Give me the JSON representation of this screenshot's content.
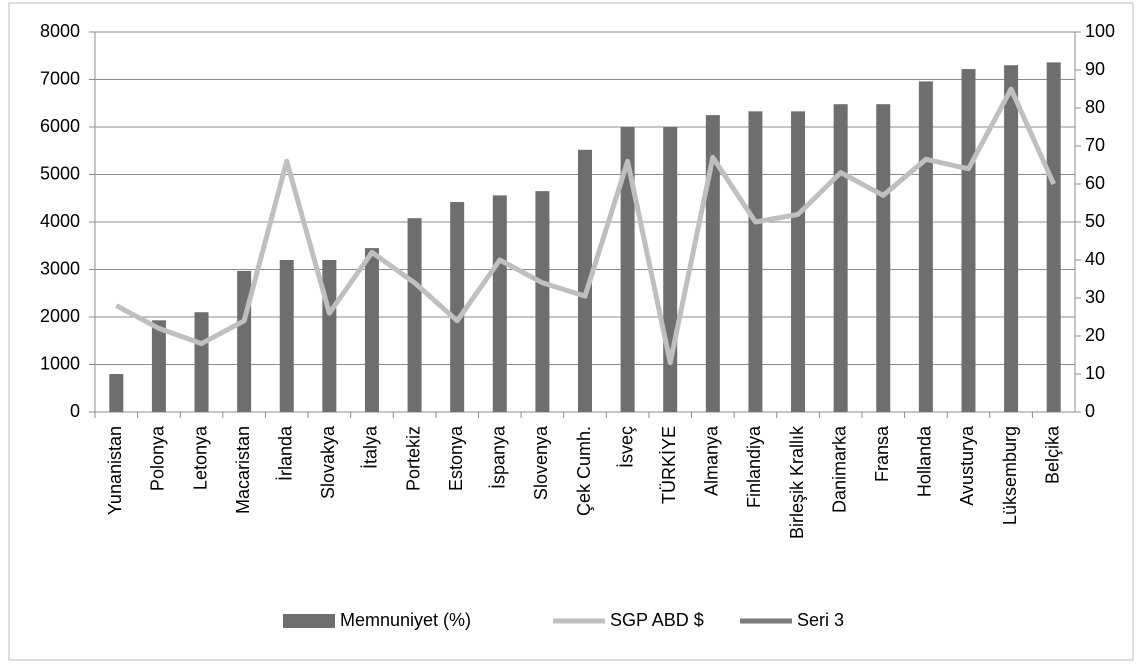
{
  "chart_data": {
    "type": "bar",
    "categories": [
      "Yunanistan",
      "Polonya",
      "Letonya",
      "Macaristan",
      "İrlanda",
      "Slovakya",
      "İtalya",
      "Portekiz",
      "Estonya",
      "İspanya",
      "Slovenya",
      "Çek Cumh.",
      "İsveç",
      "TÜRKİYE",
      "Almanya",
      "Finlandiya",
      "Birleşik Krallık",
      "Danimarka",
      "Fransa",
      "Hollanda",
      "Avusturya",
      "Lüksemburg",
      "Belçika"
    ],
    "series": [
      {
        "name": "Memnuniyet (%)",
        "type": "bar",
        "color": "#6e6e6e",
        "values": [
          800,
          1930,
          2100,
          2970,
          3200,
          3200,
          3450,
          4080,
          4420,
          4560,
          4650,
          5520,
          6000,
          6000,
          6250,
          6330,
          6330,
          6480,
          6480,
          6960,
          7220,
          7300,
          7360
        ]
      },
      {
        "name": "SGP ABD $",
        "type": "line",
        "axis": "y2",
        "color": "#bfbfbf",
        "values": [
          28,
          22,
          18,
          24,
          66,
          26,
          42,
          34,
          24,
          40,
          34,
          30.5,
          66,
          13,
          67,
          50,
          52,
          63,
          57,
          66.5,
          64,
          85,
          60
        ]
      },
      {
        "name": "Seri 3",
        "type": "line",
        "axis": "y2",
        "color": "#7a7a7a",
        "values": [
          null,
          null,
          null,
          null,
          null,
          null,
          null,
          null,
          null,
          null,
          null,
          null,
          null,
          null,
          null,
          null,
          null,
          null,
          null,
          null,
          null,
          null,
          null
        ]
      }
    ],
    "ylim": [
      0,
      8000
    ],
    "yticks": [
      0,
      1000,
      2000,
      3000,
      4000,
      5000,
      6000,
      7000,
      8000
    ],
    "y2lim": [
      0,
      100
    ],
    "y2ticks": [
      0,
      10,
      20,
      30,
      40,
      50,
      60,
      70,
      80,
      90,
      100
    ],
    "grid": true,
    "legend": "bottom"
  }
}
